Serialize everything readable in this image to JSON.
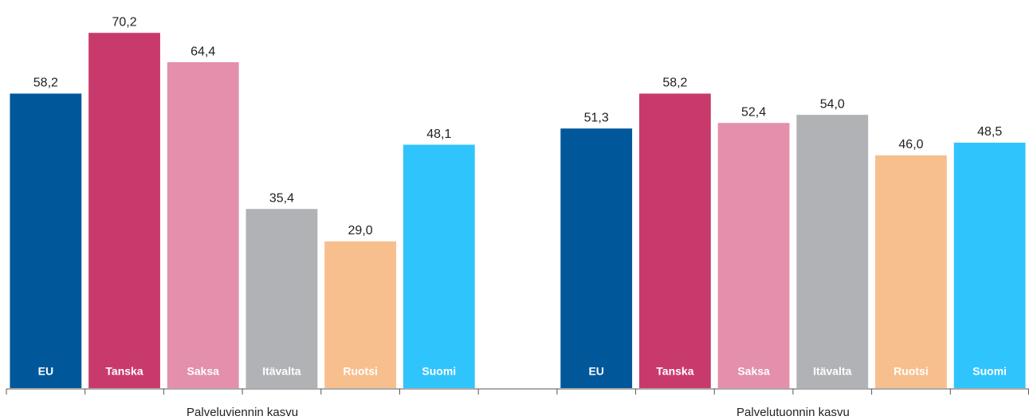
{
  "chart_data": {
    "type": "bar",
    "categories": [
      "Palveluviennin kasvu",
      "Palvelutuonnin kasvu"
    ],
    "series": [
      {
        "name": "EU",
        "color": "#00589b",
        "values": [
          58.2,
          51.3
        ],
        "value_labels": [
          "58,2",
          "51,3"
        ]
      },
      {
        "name": "Tanska",
        "color": "#c93a6c",
        "values": [
          70.2,
          58.2
        ],
        "value_labels": [
          "70,2",
          "58,2"
        ]
      },
      {
        "name": "Saksa",
        "color": "#e48fab",
        "values": [
          64.4,
          52.4
        ],
        "value_labels": [
          "64,4",
          "52,4"
        ]
      },
      {
        "name": "Itävalta",
        "color": "#b1b2b6",
        "values": [
          35.4,
          54.0
        ],
        "value_labels": [
          "35,4",
          "54,0"
        ]
      },
      {
        "name": "Ruotsi",
        "color": "#f8bf8e",
        "values": [
          29.0,
          46.0
        ],
        "value_labels": [
          "29,0",
          "46,0"
        ]
      },
      {
        "name": "Suomi",
        "color": "#30c4fc",
        "values": [
          48.1,
          48.5
        ],
        "value_labels": [
          "48,1",
          "48,5"
        ]
      }
    ]
  }
}
